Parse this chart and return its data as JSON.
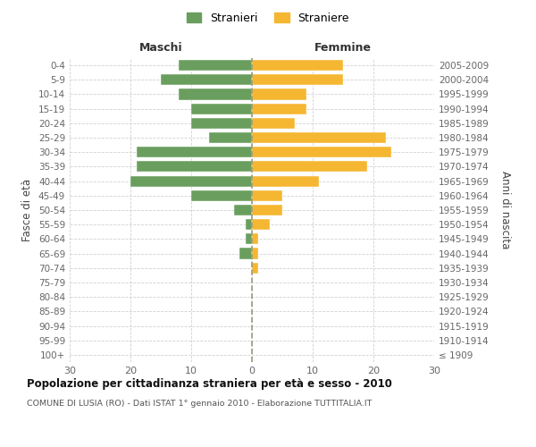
{
  "age_groups": [
    "100+",
    "95-99",
    "90-94",
    "85-89",
    "80-84",
    "75-79",
    "70-74",
    "65-69",
    "60-64",
    "55-59",
    "50-54",
    "45-49",
    "40-44",
    "35-39",
    "30-34",
    "25-29",
    "20-24",
    "15-19",
    "10-14",
    "5-9",
    "0-4"
  ],
  "birth_years": [
    "≤ 1909",
    "1910-1914",
    "1915-1919",
    "1920-1924",
    "1925-1929",
    "1930-1934",
    "1935-1939",
    "1940-1944",
    "1945-1949",
    "1950-1954",
    "1955-1959",
    "1960-1964",
    "1965-1969",
    "1970-1974",
    "1975-1979",
    "1980-1984",
    "1985-1989",
    "1990-1994",
    "1995-1999",
    "2000-2004",
    "2005-2009"
  ],
  "maschi": [
    0,
    0,
    0,
    0,
    0,
    0,
    0,
    2,
    1,
    1,
    3,
    10,
    20,
    19,
    19,
    7,
    10,
    10,
    12,
    15,
    12
  ],
  "femmine": [
    0,
    0,
    0,
    0,
    0,
    0,
    1,
    1,
    1,
    3,
    5,
    5,
    11,
    19,
    23,
    22,
    7,
    9,
    9,
    15,
    15
  ],
  "maschi_color": "#6a9e5e",
  "femmine_color": "#f5b731",
  "background_color": "#ffffff",
  "grid_color": "#cccccc",
  "title": "Popolazione per cittadinanza straniera per età e sesso - 2010",
  "subtitle": "COMUNE DI LUSIA (RO) - Dati ISTAT 1° gennaio 2010 - Elaborazione TUTTITALIA.IT",
  "xlabel_left": "Maschi",
  "xlabel_right": "Femmine",
  "ylabel_left": "Fasce di età",
  "ylabel_right": "Anni di nascita",
  "legend_maschi": "Stranieri",
  "legend_femmine": "Straniere",
  "xlim": 30,
  "bar_height": 0.75
}
